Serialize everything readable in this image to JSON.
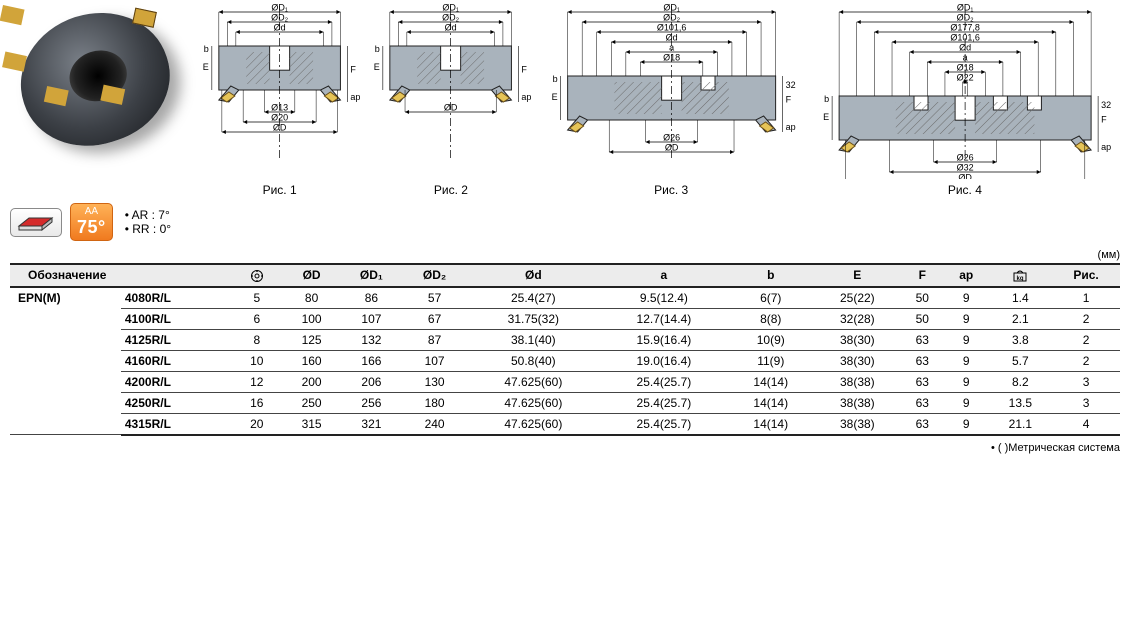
{
  "figures": [
    {
      "label": "Рис. 1",
      "dims_top": [
        "ØD₁",
        "ØD₂",
        "Ød"
      ],
      "dims_bottom": [
        "Ø13",
        "Ø20",
        "ØD"
      ],
      "left_letters": [
        "E",
        "b"
      ],
      "right_letters": [
        "F",
        "ap"
      ]
    },
    {
      "label": "Рис. 2",
      "dims_top": [
        "ØD₁",
        "ØD₂",
        "Ød"
      ],
      "dims_bottom": [
        "ØD"
      ],
      "left_letters": [
        "E",
        "b"
      ],
      "right_letters": [
        "F",
        "ap"
      ]
    },
    {
      "label": "Рис. 3",
      "dims_top": [
        "ØD₁",
        "ØD₂",
        "Ø101,6",
        "Ød",
        "a",
        "Ø18"
      ],
      "dims_bottom": [
        "Ø26",
        "ØD"
      ],
      "left_letters": [
        "E",
        "b"
      ],
      "right_letters": [
        "32",
        "F",
        "ap"
      ]
    },
    {
      "label": "Рис. 4",
      "dims_top": [
        "ØD₁",
        "ØD₂",
        "Ø177,8",
        "Ø101,6",
        "Ød",
        "a",
        "Ø18",
        "Ø22"
      ],
      "dims_bottom": [
        "Ø26",
        "Ø32",
        "ØD"
      ],
      "left_letters": [
        "E",
        "b"
      ],
      "right_letters": [
        "32",
        "F",
        "ap"
      ]
    }
  ],
  "badge_angle_top": "AA",
  "badge_angle_bottom": "75°",
  "geometry": [
    "• AR : 7°",
    "• RR : 0°"
  ],
  "mm": "(мм)",
  "table": {
    "headers": [
      "Обозначение",
      "⬡",
      "ØD",
      "ØD₁",
      "ØD₂",
      "Ød",
      "a",
      "b",
      "E",
      "F",
      "ap",
      "kg",
      "Рис."
    ],
    "series": "EPN(M)",
    "rows": [
      {
        "model": "4080R/L",
        "cells": [
          "5",
          "80",
          "86",
          "57",
          "25.4(27)",
          "9.5(12.4)",
          "6(7)",
          "25(22)",
          "50",
          "9",
          "1.4",
          "1"
        ]
      },
      {
        "model": "4100R/L",
        "cells": [
          "6",
          "100",
          "107",
          "67",
          "31.75(32)",
          "12.7(14.4)",
          "8(8)",
          "32(28)",
          "50",
          "9",
          "2.1",
          "2"
        ]
      },
      {
        "model": "4125R/L",
        "cells": [
          "8",
          "125",
          "132",
          "87",
          "38.1(40)",
          "15.9(16.4)",
          "10(9)",
          "38(30)",
          "63",
          "9",
          "3.8",
          "2"
        ]
      },
      {
        "model": "4160R/L",
        "cells": [
          "10",
          "160",
          "166",
          "107",
          "50.8(40)",
          "19.0(16.4)",
          "11(9)",
          "38(30)",
          "63",
          "9",
          "5.7",
          "2"
        ]
      },
      {
        "model": "4200R/L",
        "cells": [
          "12",
          "200",
          "206",
          "130",
          "47.625(60)",
          "25.4(25.7)",
          "14(14)",
          "38(38)",
          "63",
          "9",
          "8.2",
          "3"
        ]
      },
      {
        "model": "4250R/L",
        "cells": [
          "16",
          "250",
          "256",
          "180",
          "47.625(60)",
          "25.4(25.7)",
          "14(14)",
          "38(38)",
          "63",
          "9",
          "13.5",
          "3"
        ]
      },
      {
        "model": "4315R/L",
        "cells": [
          "20",
          "315",
          "321",
          "240",
          "47.625(60)",
          "25.4(25.7)",
          "14(14)",
          "38(38)",
          "63",
          "9",
          "21.1",
          "4"
        ]
      }
    ]
  },
  "footnote": "• (  )Метрическая система",
  "colors": {
    "body": "#a9b3bc",
    "insert": "#e6c457",
    "crosshatch": "#6b6b6b",
    "line": "#222"
  }
}
